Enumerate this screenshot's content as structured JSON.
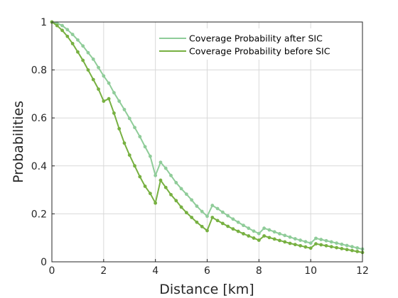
{
  "chart_data": {
    "type": "line",
    "xlabel": "Distance [km]",
    "ylabel": "Probabilities",
    "xlim": [
      0,
      12
    ],
    "ylim": [
      0,
      1
    ],
    "xticks": [
      0,
      2,
      4,
      6,
      8,
      10,
      12
    ],
    "yticks": [
      0,
      0.2,
      0.4,
      0.6,
      0.8,
      1
    ],
    "xtick_labels": [
      "0",
      "2",
      "4",
      "6",
      "8",
      "10",
      "12"
    ],
    "ytick_labels": [
      "0",
      "0.2",
      "0.4",
      "0.6",
      "0.8",
      "1"
    ],
    "grid": true,
    "legend_position": "top-right",
    "x": [
      0,
      0.2,
      0.4,
      0.6,
      0.8,
      1.0,
      1.2,
      1.4,
      1.6,
      1.8,
      2.0,
      2.2,
      2.4,
      2.6,
      2.8,
      3.0,
      3.2,
      3.4,
      3.6,
      3.8,
      4.0,
      4.2,
      4.4,
      4.6,
      4.8,
      5.0,
      5.2,
      5.4,
      5.6,
      5.8,
      6.0,
      6.2,
      6.4,
      6.6,
      6.8,
      7.0,
      7.2,
      7.4,
      7.6,
      7.8,
      8.0,
      8.2,
      8.4,
      8.6,
      8.8,
      9.0,
      9.2,
      9.4,
      9.6,
      9.8,
      10.0,
      10.2,
      10.4,
      10.6,
      10.8,
      11.0,
      11.2,
      11.4,
      11.6,
      11.8,
      12.0
    ],
    "series": [
      {
        "name": "Coverage Probability after SIC",
        "color": "#8fcc99",
        "values": [
          1.0,
          0.995,
          0.985,
          0.968,
          0.948,
          0.925,
          0.9,
          0.872,
          0.845,
          0.81,
          0.775,
          0.745,
          0.705,
          0.67,
          0.635,
          0.598,
          0.56,
          0.522,
          0.48,
          0.44,
          0.36,
          0.415,
          0.39,
          0.36,
          0.33,
          0.305,
          0.282,
          0.258,
          0.232,
          0.21,
          0.19,
          0.235,
          0.222,
          0.207,
          0.192,
          0.178,
          0.165,
          0.152,
          0.14,
          0.128,
          0.118,
          0.14,
          0.133,
          0.125,
          0.117,
          0.11,
          0.103,
          0.096,
          0.09,
          0.084,
          0.078,
          0.098,
          0.093,
          0.088,
          0.083,
          0.078,
          0.073,
          0.068,
          0.063,
          0.058,
          0.053
        ]
      },
      {
        "name": "Coverage Probability before SIC",
        "color": "#77b041",
        "values": [
          1.0,
          0.985,
          0.965,
          0.94,
          0.91,
          0.875,
          0.84,
          0.8,
          0.76,
          0.72,
          0.67,
          0.68,
          0.62,
          0.555,
          0.495,
          0.445,
          0.4,
          0.355,
          0.315,
          0.285,
          0.245,
          0.34,
          0.31,
          0.28,
          0.255,
          0.228,
          0.205,
          0.185,
          0.165,
          0.147,
          0.13,
          0.185,
          0.172,
          0.16,
          0.148,
          0.137,
          0.127,
          0.117,
          0.108,
          0.099,
          0.09,
          0.108,
          0.101,
          0.095,
          0.089,
          0.083,
          0.077,
          0.072,
          0.067,
          0.062,
          0.057,
          0.075,
          0.071,
          0.067,
          0.063,
          0.059,
          0.055,
          0.051,
          0.047,
          0.043,
          0.039
        ]
      }
    ]
  }
}
